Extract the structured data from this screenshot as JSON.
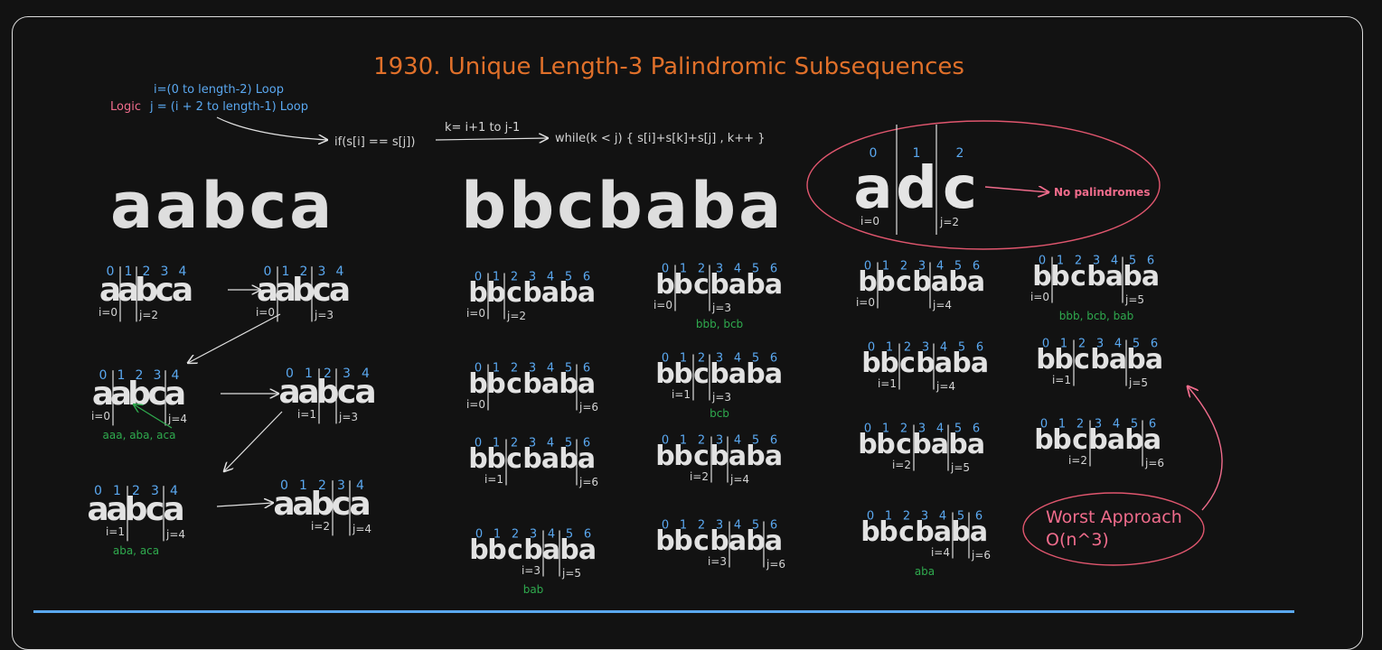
{
  "title": "1930. Unique Length-3 Palindromic Subsequences",
  "logic": {
    "label": "Logic",
    "loop_i": "i=(0 to length-2) Loop",
    "loop_j": "j = (i + 2 to length-1) Loop",
    "cond": "if(s[i] == s[j])",
    "k_range": "k= i+1 to j-1",
    "while": "while(k < j) { s[i]+s[k]+s[j] , k++ }"
  },
  "examples": [
    "aabca",
    "bbcbaba",
    "adc"
  ],
  "adc_note": "No palindromes",
  "worst": {
    "line1": "Worst Approach",
    "line2": "O(n^3)"
  },
  "colors": {
    "title": "#e0702a",
    "index": "#5aa8f0",
    "found": "#2faa4e",
    "note": "#f06c8c"
  },
  "adc": {
    "word": "adc",
    "digits": [
      "0",
      "1",
      "2"
    ],
    "i": "i=0",
    "j": "j=2"
  },
  "steps": [
    {
      "word": "aabca",
      "digits": [
        "0",
        "1",
        "2",
        "3",
        "4"
      ],
      "i": "i=0",
      "j": "j=2",
      "found": ""
    },
    {
      "word": "aabca",
      "digits": [
        "0",
        "1",
        "2",
        "3",
        "4"
      ],
      "i": "i=0",
      "j": "j=3",
      "found": ""
    },
    {
      "word": "aabca",
      "digits": [
        "0",
        "1",
        "2",
        "3",
        "4"
      ],
      "i": "i=0",
      "j": "j=4",
      "found": "aaa, aba, aca"
    },
    {
      "word": "aabca",
      "digits": [
        "0",
        "1",
        "2",
        "3",
        "4"
      ],
      "i": "i=1",
      "j": "j=3",
      "found": ""
    },
    {
      "word": "aabca",
      "digits": [
        "0",
        "1",
        "2",
        "3",
        "4"
      ],
      "i": "i=1",
      "j": "j=4",
      "found": "aba, aca"
    },
    {
      "word": "aabca",
      "digits": [
        "0",
        "1",
        "2",
        "3",
        "4"
      ],
      "i": "i=2",
      "j": "j=4",
      "found": ""
    },
    {
      "word": "bbcbaba",
      "digits": [
        "0",
        "1",
        "2",
        "3",
        "4",
        "5",
        "6"
      ],
      "i": "i=0",
      "j": "j=2",
      "found": ""
    },
    {
      "word": "bbcbaba",
      "digits": [
        "0",
        "1",
        "2",
        "3",
        "4",
        "5",
        "6"
      ],
      "i": "i=0",
      "j": "j=6",
      "found": ""
    },
    {
      "word": "bbcbaba",
      "digits": [
        "0",
        "1",
        "2",
        "3",
        "4",
        "5",
        "6"
      ],
      "i": "i=1",
      "j": "j=6",
      "found": ""
    },
    {
      "word": "bbcbaba",
      "digits": [
        "0",
        "1",
        "2",
        "3",
        "4",
        "5",
        "6"
      ],
      "i": "i=3",
      "j": "j=5",
      "found": "bab"
    },
    {
      "word": "bbcbaba",
      "digits": [
        "0",
        "1",
        "2",
        "3",
        "4",
        "5",
        "6"
      ],
      "i": "i=0",
      "j": "j=3",
      "found": "bbb, bcb"
    },
    {
      "word": "bbcbaba",
      "digits": [
        "0",
        "1",
        "2",
        "3",
        "4",
        "5",
        "6"
      ],
      "i": "i=1",
      "j": "j=3",
      "found": "bcb"
    },
    {
      "word": "bbcbaba",
      "digits": [
        "0",
        "1",
        "2",
        "3",
        "4",
        "5",
        "6"
      ],
      "i": "i=2",
      "j": "j=4",
      "found": ""
    },
    {
      "word": "bbcbaba",
      "digits": [
        "0",
        "1",
        "2",
        "3",
        "4",
        "5",
        "6"
      ],
      "i": "i=3",
      "j": "j=6",
      "found": ""
    },
    {
      "word": "bbcbaba",
      "digits": [
        "0",
        "1",
        "2",
        "3",
        "4",
        "5",
        "6"
      ],
      "i": "i=0",
      "j": "j=4",
      "found": ""
    },
    {
      "word": "bbcbaba",
      "digits": [
        "0",
        "1",
        "2",
        "3",
        "4",
        "5",
        "6"
      ],
      "i": "i=1",
      "j": "j=4",
      "found": ""
    },
    {
      "word": "bbcbaba",
      "digits": [
        "0",
        "1",
        "2",
        "3",
        "4",
        "5",
        "6"
      ],
      "i": "i=2",
      "j": "j=5",
      "found": ""
    },
    {
      "word": "bbcbaba",
      "digits": [
        "0",
        "1",
        "2",
        "3",
        "4",
        "5",
        "6"
      ],
      "i": "i=4",
      "j": "j=6",
      "found": "aba"
    },
    {
      "word": "bbcbaba",
      "digits": [
        "0",
        "1",
        "2",
        "3",
        "4",
        "5",
        "6"
      ],
      "i": "i=0",
      "j": "j=5",
      "found": "bbb, bcb, bab"
    },
    {
      "word": "bbcbaba",
      "digits": [
        "0",
        "1",
        "2",
        "3",
        "4",
        "5",
        "6"
      ],
      "i": "i=1",
      "j": "j=5",
      "found": ""
    },
    {
      "word": "bbcbaba",
      "digits": [
        "0",
        "1",
        "2",
        "3",
        "4",
        "5",
        "6"
      ],
      "i": "i=2",
      "j": "j=6",
      "found": ""
    }
  ]
}
